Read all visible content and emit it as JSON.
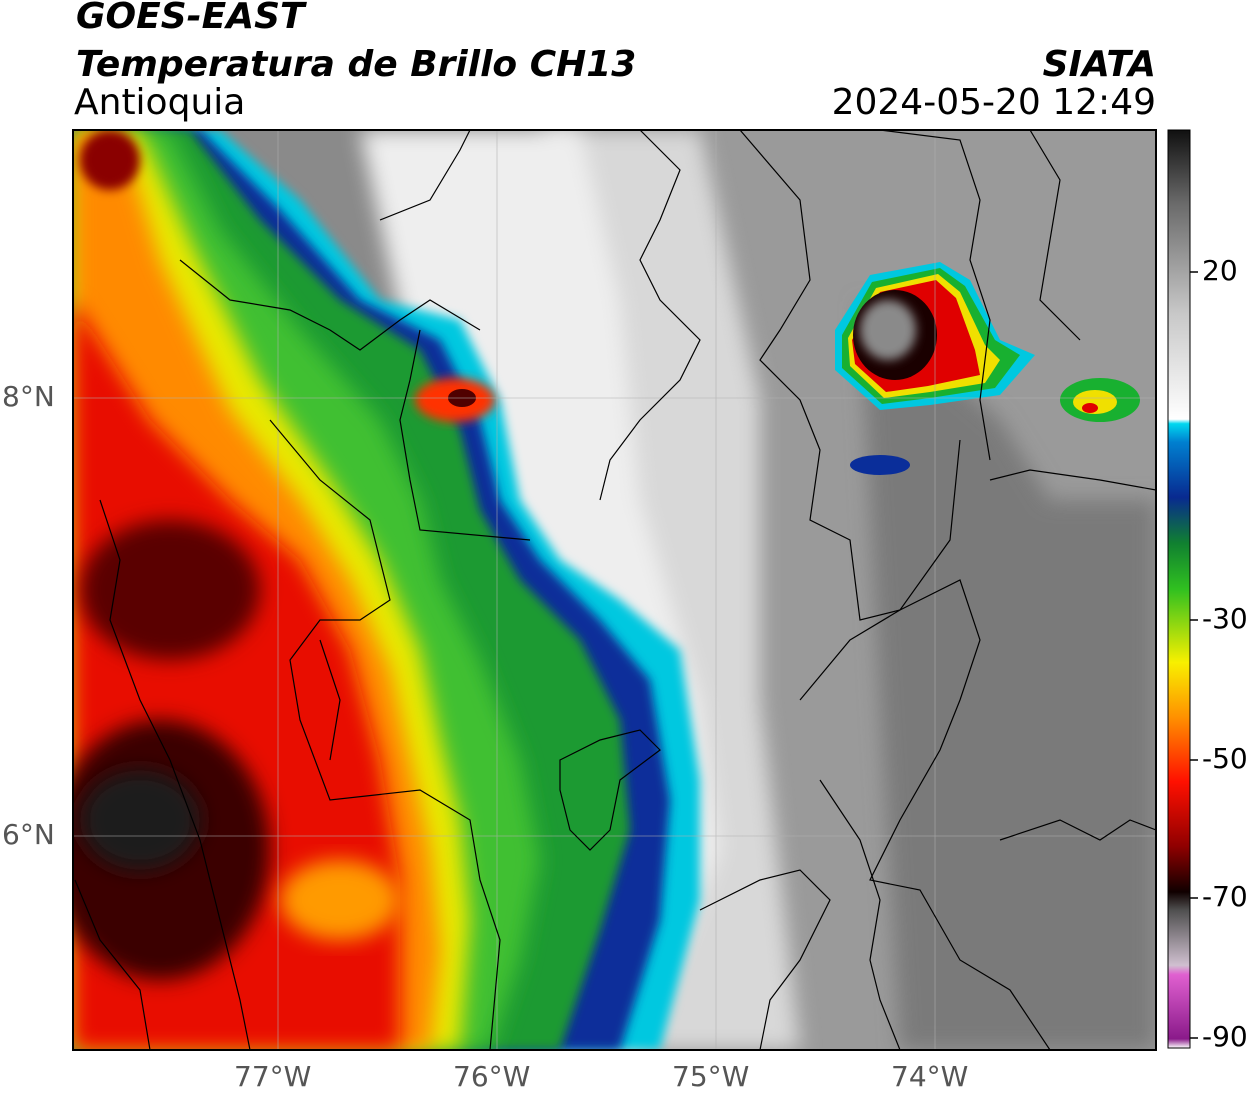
{
  "header": {
    "satellite": "GOES-EAST",
    "product": "Temperatura de Brillo CH13",
    "region": "Antioquia",
    "organization": "SIATA",
    "datetime": "2024-05-20 12:49"
  },
  "map": {
    "lon_range": [
      -77.95,
      -72.98
    ],
    "lat_range": [
      4.9,
      9.08
    ],
    "lon_ticks": [
      "77°W",
      "76°W",
      "75°W",
      "74°W"
    ],
    "lat_ticks": [
      "8°N",
      "6°N"
    ],
    "gridlines": true
  },
  "colorbar": {
    "labels": [
      "20",
      "-30",
      "-50",
      "-70",
      "-90"
    ],
    "range": [
      -90,
      35
    ],
    "colors": {
      "warm": "#1a1a1a",
      "cloudfree_light": "#f0f0f0",
      "cyan": "#00c8e0",
      "blue": "#0030a0",
      "green": "#18b030",
      "yellow": "#f0f000",
      "orange": "#ff8000",
      "red": "#e00000",
      "darkred": "#400000",
      "magenta": "#d040c0"
    }
  }
}
